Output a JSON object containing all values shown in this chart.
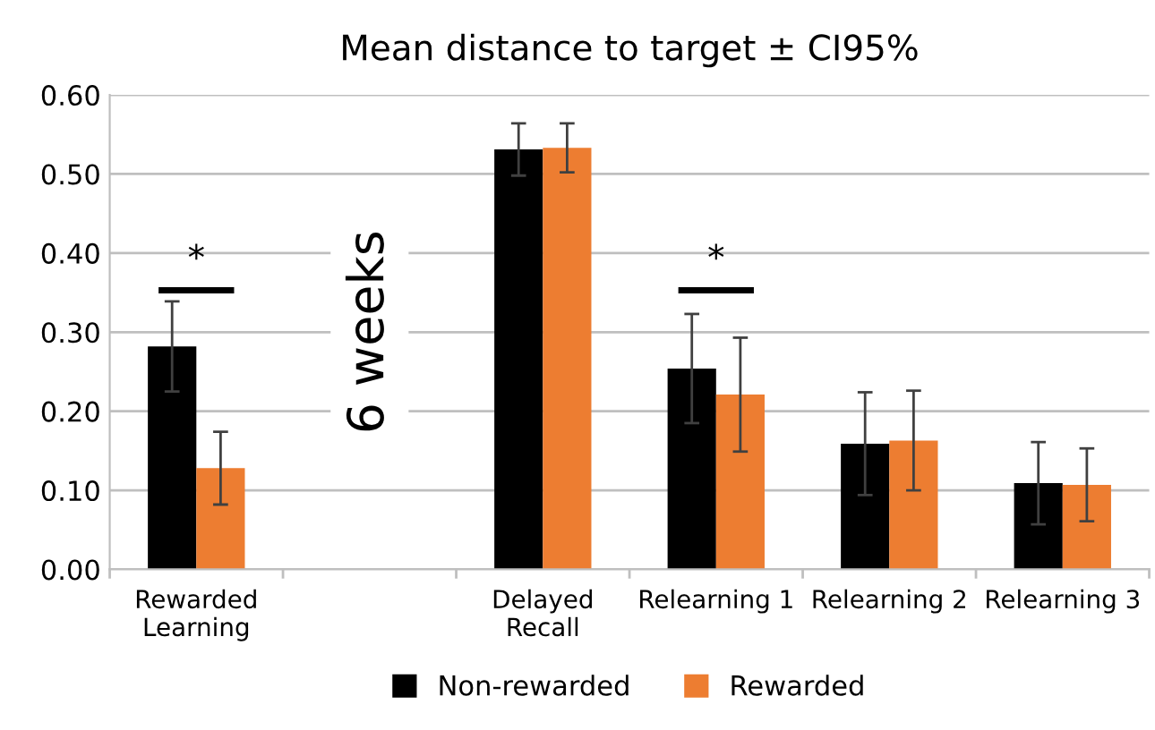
{
  "chart_data": {
    "type": "bar",
    "title": "Mean distance to target ± CI95%",
    "categories": [
      "Rewarded\nLearning",
      null,
      "Delayed\nRecall",
      "Relearning 1",
      "Relearning 2",
      "Relearning 3"
    ],
    "series": [
      {
        "name": "Non-rewarded",
        "color": "#000000",
        "values": [
          0.282,
          null,
          0.531,
          0.254,
          0.159,
          0.109
        ],
        "errors": [
          0.057,
          null,
          0.033,
          0.069,
          0.065,
          0.052
        ]
      },
      {
        "name": "Rewarded",
        "color": "#ed7d31",
        "values": [
          0.128,
          null,
          0.533,
          0.221,
          0.163,
          0.107
        ],
        "errors": [
          0.046,
          null,
          0.031,
          0.072,
          0.063,
          0.046
        ]
      }
    ],
    "ylim": [
      0,
      0.6
    ],
    "yticks": [
      {
        "value": 0,
        "label": "0.00"
      },
      {
        "value": 0.1,
        "label": "0.10"
      },
      {
        "value": 0.2,
        "label": "0.20"
      },
      {
        "value": 0.3,
        "label": "0.30"
      },
      {
        "value": 0.4,
        "label": "0.40"
      },
      {
        "value": 0.5,
        "label": "0.50"
      },
      {
        "value": 0.6,
        "label": "0.60"
      }
    ],
    "grid": "y",
    "legend": "bottom",
    "annotations": [
      "*",
      "*",
      "6 weeks"
    ]
  }
}
